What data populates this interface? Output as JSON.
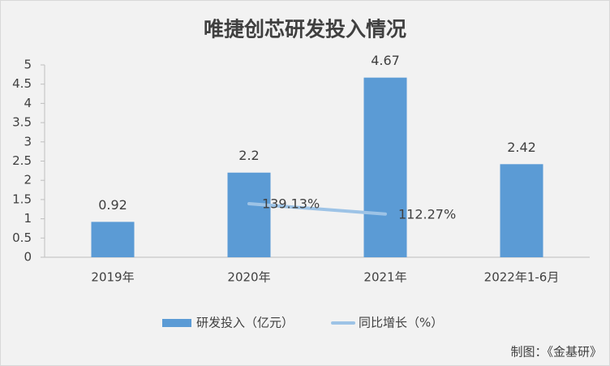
{
  "chart_data": {
    "type": "bar",
    "title": "唯捷创芯研发投入情况",
    "source": "制图：《金基研》",
    "categories": [
      "2019年",
      "2020年",
      "2021年",
      "2022年1-6月"
    ],
    "series": [
      {
        "name": "研发投入（亿元）",
        "type": "bar",
        "color": "#5b9bd5",
        "values": [
          0.92,
          2.2,
          4.67,
          2.42
        ]
      },
      {
        "name": "同比增长（%）",
        "type": "line",
        "axis": "y2",
        "color": "#9dc3e6",
        "values": [
          null,
          139.13,
          112.27,
          null
        ],
        "value_labels": [
          null,
          "139.13%",
          "112.27%",
          null
        ]
      }
    ],
    "ylim": [
      0,
      5
    ],
    "yticks": [
      0,
      0.5,
      1,
      1.5,
      2,
      2.5,
      3,
      3.5,
      4,
      4.5,
      5
    ],
    "y2lim": [
      0,
      500
    ],
    "legend": "bottom"
  }
}
